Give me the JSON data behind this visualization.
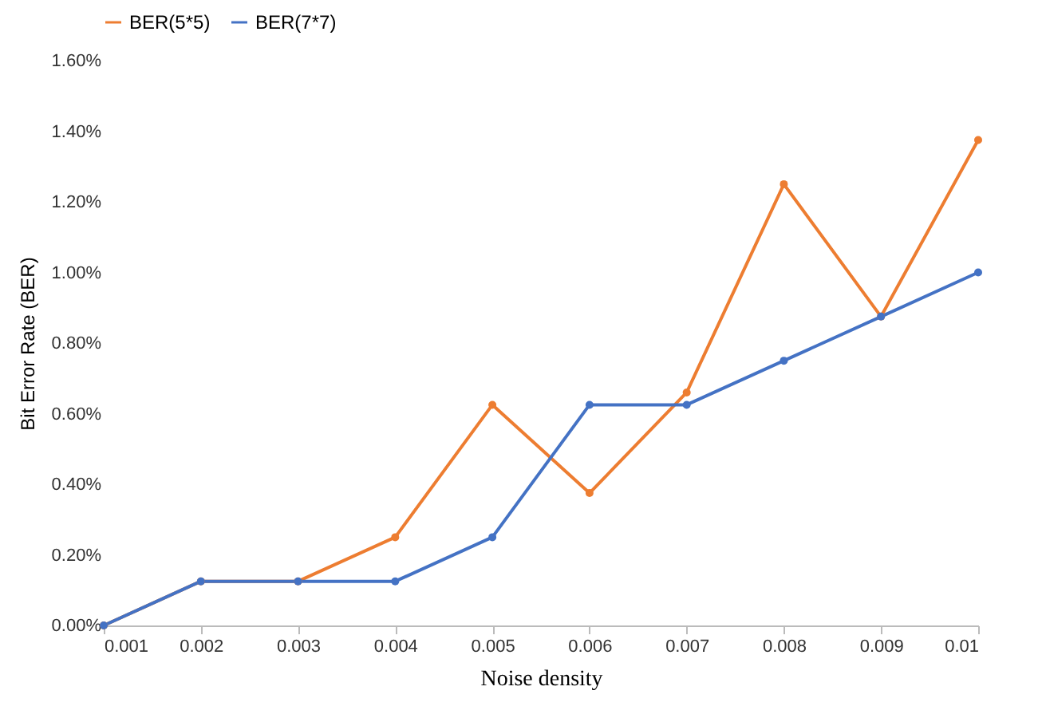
{
  "chart_data": {
    "type": "line",
    "xlabel": "Noise density",
    "ylabel": "Bit Error Rate (BER)",
    "x": [
      0.001,
      0.002,
      0.003,
      0.004,
      0.005,
      0.006,
      0.007,
      0.008,
      0.009,
      0.01
    ],
    "series": [
      {
        "name": "BER(5*5)",
        "color": "#ed7d31",
        "values": [
          0,
          0.125,
          0.125,
          0.25,
          0.625,
          0.375,
          0.66,
          1.25,
          0.875,
          1.375
        ]
      },
      {
        "name": "BER(7*7)",
        "color": "#4472c4",
        "values": [
          0,
          0.125,
          0.125,
          0.125,
          0.25,
          0.625,
          0.625,
          0.75,
          0.875,
          1.0
        ]
      }
    ],
    "xlim": [
      0.001,
      0.01
    ],
    "xticks": [
      0.001,
      0.002,
      0.003,
      0.004,
      0.005,
      0.006,
      0.007,
      0.008,
      0.009,
      0.01
    ],
    "ylim": [
      0,
      1.6
    ],
    "yticks": [
      {
        "value": 0,
        "label": "0.00%"
      },
      {
        "value": 0.2,
        "label": "0.20%"
      },
      {
        "value": 0.4,
        "label": "0.40%"
      },
      {
        "value": 0.6,
        "label": "0.60%"
      },
      {
        "value": 0.8,
        "label": "0.80%"
      },
      {
        "value": 1.0,
        "label": "1.00%"
      },
      {
        "value": 1.2,
        "label": "1.20%"
      },
      {
        "value": 1.4,
        "label": "1.40%"
      },
      {
        "value": 1.6,
        "label": "1.60%"
      }
    ],
    "grid": false,
    "legend": "top",
    "marker": "circle",
    "line_style": "solid"
  }
}
